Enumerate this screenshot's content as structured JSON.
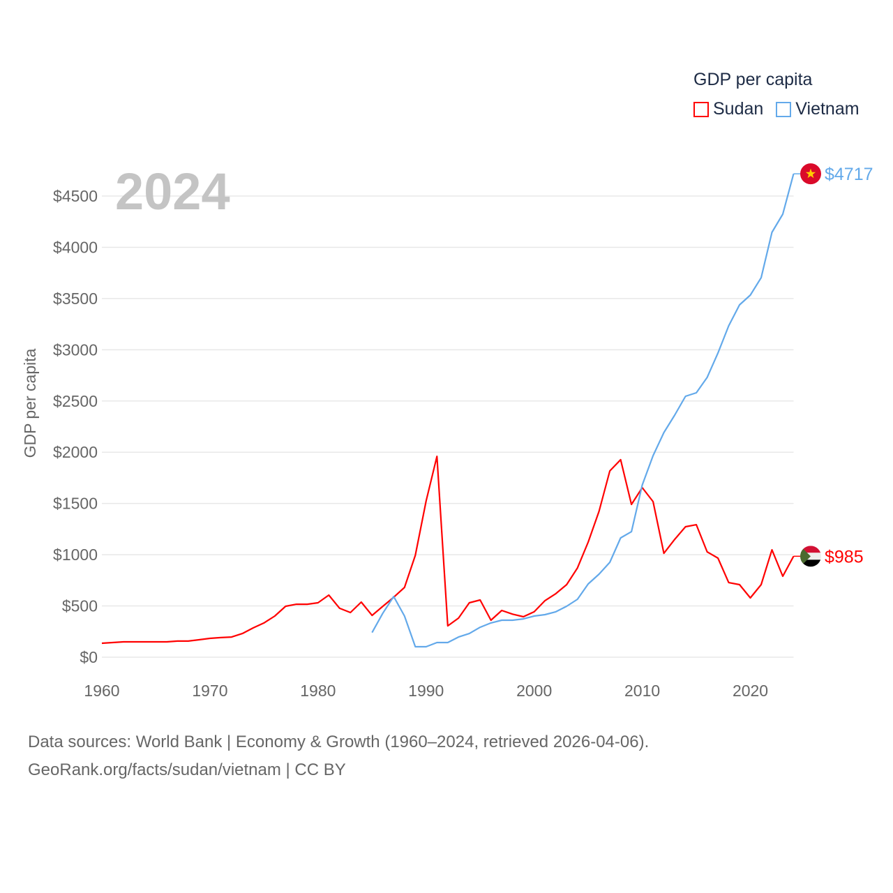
{
  "chart_data": {
    "type": "line",
    "title": "GDP per capita",
    "year_label": "2024",
    "ylabel": "GDP per capita",
    "xlabel": "",
    "xlim": [
      1960,
      2024
    ],
    "ylim": [
      0,
      4717
    ],
    "x_ticks": [
      1960,
      1970,
      1980,
      1990,
      2000,
      2010,
      2020
    ],
    "y_ticks": [
      0,
      500,
      1000,
      1500,
      2000,
      2500,
      3000,
      3500,
      4000,
      4500
    ],
    "y_tick_labels": [
      "$0",
      "$500",
      "$1000",
      "$1500",
      "$2000",
      "$2500",
      "$3000",
      "$3500",
      "$4000",
      "$4500"
    ],
    "grid": true,
    "legend_position": "top-right",
    "series": [
      {
        "name": "Sudan",
        "color": "#ff0000",
        "start_year": 1960,
        "end_label": "$985",
        "flag": "sudan-flag",
        "values": [
          136,
          143,
          150,
          150,
          150,
          150,
          150,
          157,
          157,
          170,
          184,
          191,
          197,
          231,
          286,
          334,
          402,
          497,
          517,
          517,
          531,
          606,
          477,
          436,
          538,
          408,
          497,
          585,
          681,
          994,
          1525,
          1960,
          306,
          381,
          531,
          558,
          361,
          456,
          420,
          395,
          443,
          552,
          620,
          708,
          871,
          1123,
          1423,
          1818,
          1927,
          1491,
          1654,
          1518,
          1014,
          1150,
          1273,
          1293,
          1028,
          967,
          728,
          708,
          579,
          708,
          1048,
          790,
          985
        ]
      },
      {
        "name": "Vietnam",
        "color": "#63a9ea",
        "start_year": 1985,
        "end_label": "$4717",
        "flag": "vietnam-flag",
        "values": [
          240,
          430,
          592,
          402,
          102,
          102,
          143,
          143,
          197,
          231,
          292,
          334,
          361,
          361,
          374,
          402,
          415,
          443,
          497,
          565,
          715,
          810,
          926,
          1164,
          1225,
          1681,
          1967,
          2192,
          2362,
          2546,
          2580,
          2730,
          2968,
          3234,
          3438,
          3533,
          3703,
          4146,
          4323,
          4717
        ]
      }
    ]
  },
  "source": {
    "line1": "Data sources: World Bank | Economy & Growth (1960–2024, retrieved 2026-04-06).",
    "line2": "GeoRank.org/facts/sudan/vietnam | CC BY"
  }
}
